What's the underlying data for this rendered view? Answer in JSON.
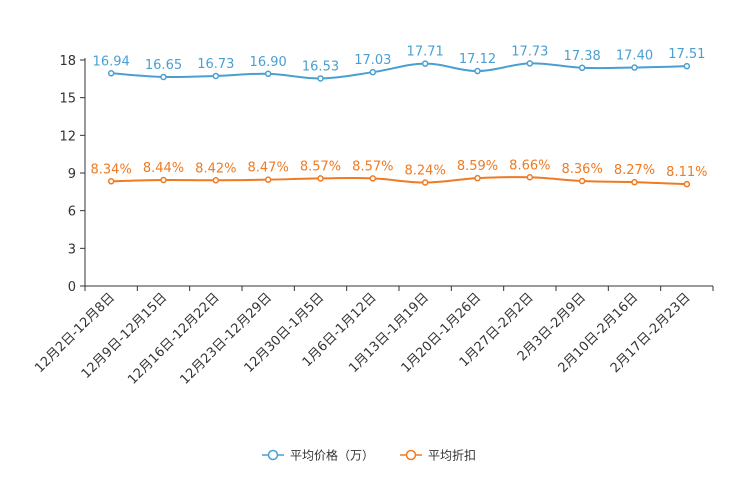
{
  "chart_data": {
    "type": "line",
    "categories": [
      "12月2日-12月8日",
      "12月9日-12月15日",
      "12月16日-12月22日",
      "12月23日-12月29日",
      "12月30日-1月5日",
      "1月6日-1月12日",
      "1月13日-1月19日",
      "1月20日-1月26日",
      "1月27日-2月2日",
      "2月3日-2月9日",
      "2月10日-2月16日",
      "2月17日-2月23日"
    ],
    "series": [
      {
        "name": "平均价格（万）",
        "color": "#4A9FD1",
        "values": [
          16.94,
          16.65,
          16.73,
          16.9,
          16.53,
          17.03,
          17.71,
          17.12,
          17.73,
          17.38,
          17.4,
          17.51
        ],
        "labels": [
          "16.94",
          "16.65",
          "16.73",
          "16.90",
          "16.53",
          "17.03",
          "17.71",
          "17.12",
          "17.73",
          "17.38",
          "17.40",
          "17.51"
        ]
      },
      {
        "name": "平均折扣",
        "color": "#F07A22",
        "values": [
          8.34,
          8.44,
          8.42,
          8.47,
          8.57,
          8.57,
          8.24,
          8.59,
          8.66,
          8.36,
          8.27,
          8.11
        ],
        "labels": [
          "8.34%",
          "8.44%",
          "8.42%",
          "8.47%",
          "8.57%",
          "8.57%",
          "8.24%",
          "8.59%",
          "8.66%",
          "8.36%",
          "8.27%",
          "8.11%"
        ]
      }
    ],
    "yticks": [
      0,
      3,
      6,
      9,
      12,
      15,
      18
    ],
    "ylim": [
      0,
      18
    ],
    "title": "",
    "xlabel": "",
    "ylabel": "",
    "legend_position": "bottom-center"
  }
}
